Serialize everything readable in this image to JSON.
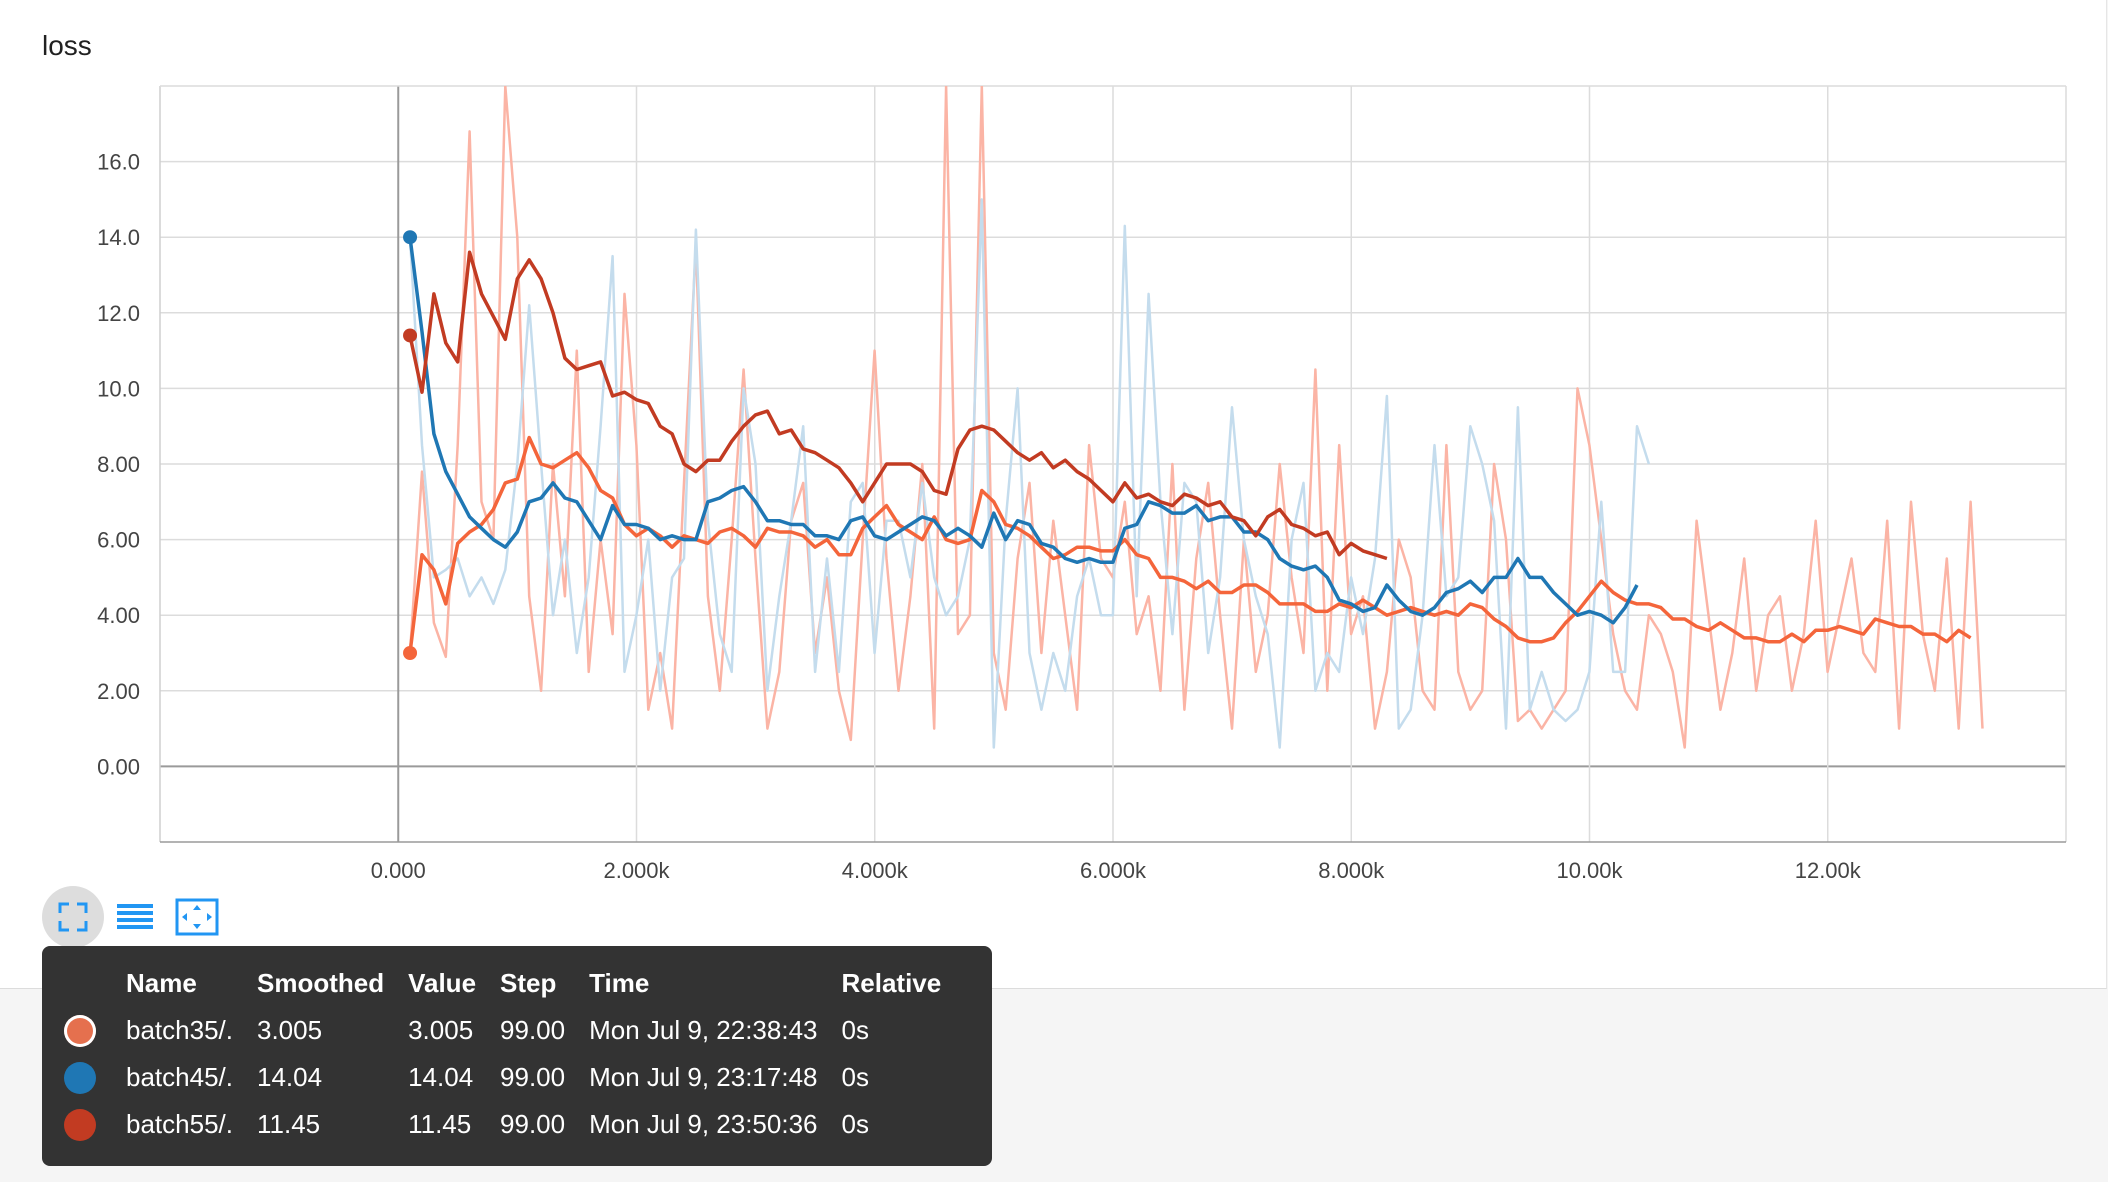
{
  "card": {
    "title": "loss"
  },
  "chart_data": {
    "type": "line",
    "title": "loss",
    "xlabel": "",
    "ylabel": "",
    "xlim": [
      -2000,
      14000
    ],
    "ylim": [
      -2,
      18
    ],
    "xticks": [
      0,
      2000,
      4000,
      6000,
      8000,
      10000,
      12000
    ],
    "xtick_labels": [
      "0.000",
      "2.000k",
      "4.000k",
      "6.000k",
      "8.000k",
      "10.00k",
      "12.00k"
    ],
    "yticks": [
      0,
      2,
      4,
      6,
      8,
      10,
      12,
      14,
      16
    ],
    "ytick_labels": [
      "0.00",
      "2.00",
      "4.00",
      "6.00",
      "8.00",
      "10.0",
      "12.0",
      "14.0",
      "16.0"
    ],
    "grid": true,
    "series": [
      {
        "name": "batch35/.",
        "color": "#f4653b",
        "raw_color": "#fbb4a5",
        "x_start": 99,
        "x_step": 100,
        "smoothed": [
          3.0,
          5.6,
          5.2,
          4.3,
          5.9,
          6.2,
          6.4,
          6.8,
          7.5,
          7.6,
          8.7,
          8.0,
          7.9,
          8.1,
          8.3,
          7.9,
          7.3,
          7.1,
          6.4,
          6.1,
          6.3,
          6.1,
          5.8,
          6.1,
          6.0,
          5.9,
          6.2,
          6.3,
          6.1,
          5.8,
          6.3,
          6.2,
          6.2,
          6.1,
          5.8,
          6.0,
          5.6,
          5.6,
          6.3,
          6.6,
          6.9,
          6.4,
          6.2,
          6.0,
          6.6,
          6.0,
          5.9,
          6.0,
          7.3,
          7.0,
          6.4,
          6.3,
          6.1,
          5.8,
          5.5,
          5.6,
          5.8,
          5.8,
          5.7,
          5.7,
          6.0,
          5.6,
          5.5,
          5.0,
          5.0,
          4.9,
          4.7,
          4.9,
          4.6,
          4.6,
          4.8,
          4.8,
          4.6,
          4.3,
          4.3,
          4.3,
          4.1,
          4.1,
          4.3,
          4.2,
          4.4,
          4.2,
          4.0,
          4.1,
          4.2,
          4.1,
          4.0,
          4.1,
          4.0,
          4.3,
          4.2,
          3.9,
          3.7,
          3.4,
          3.3,
          3.3,
          3.4,
          3.8,
          4.1,
          4.5,
          4.9,
          4.6,
          4.4,
          4.3,
          4.3,
          4.2,
          3.9,
          3.9,
          3.7,
          3.6,
          3.8,
          3.6,
          3.4,
          3.4,
          3.3,
          3.3,
          3.5,
          3.3,
          3.6,
          3.6,
          3.7,
          3.6,
          3.5,
          3.9,
          3.8,
          3.7,
          3.7,
          3.5,
          3.5,
          3.3,
          3.6,
          3.4
        ],
        "raw": [
          3.0,
          7.8,
          3.8,
          2.9,
          8.5,
          16.8,
          7.0,
          6.0,
          18.0,
          14.0,
          4.5,
          2.0,
          8.0,
          4.5,
          11.0,
          2.5,
          6.0,
          3.5,
          12.5,
          8.5,
          1.5,
          3.0,
          1.0,
          7.5,
          13.8,
          4.5,
          2.0,
          6.0,
          10.5,
          5.5,
          1.0,
          2.5,
          6.5,
          7.5,
          3.0,
          5.0,
          2.0,
          0.7,
          6.0,
          11.0,
          5.5,
          2.0,
          4.5,
          8.0,
          1.0,
          18.0,
          3.5,
          4.0,
          18.0,
          3.0,
          1.5,
          5.5,
          7.5,
          3.0,
          6.5,
          4.0,
          1.5,
          8.5,
          5.5,
          5.0,
          7.0,
          3.5,
          4.5,
          2.0,
          8.0,
          1.5,
          5.5,
          7.5,
          4.0,
          1.0,
          6.0,
          2.5,
          4.0,
          8.0,
          5.0,
          3.0,
          10.5,
          2.0,
          8.5,
          3.5,
          4.5,
          1.0,
          2.5,
          6.0,
          5.0,
          2.0,
          1.5,
          8.5,
          2.5,
          1.5,
          2.0,
          8.0,
          6.0,
          1.2,
          1.5,
          1.0,
          1.5,
          2.0,
          10.0,
          8.5,
          6.0,
          3.5,
          2.0,
          1.5,
          4.0,
          3.5,
          2.5,
          0.5,
          6.5,
          4.0,
          1.5,
          3.0,
          5.5,
          2.0,
          4.0,
          4.5,
          2.0,
          3.5,
          6.5,
          2.5,
          4.0,
          5.5,
          3.0,
          2.5,
          6.5,
          1.0,
          7.0,
          3.5,
          2.0,
          5.5,
          1.0,
          7.0,
          1.0
        ]
      },
      {
        "name": "batch45/.",
        "color": "#1f77b4",
        "raw_color": "#c4dced",
        "x_start": 99,
        "x_step": 100,
        "smoothed": [
          14.0,
          11.5,
          8.8,
          7.8,
          7.2,
          6.6,
          6.3,
          6.0,
          5.8,
          6.2,
          7.0,
          7.1,
          7.5,
          7.1,
          7.0,
          6.5,
          6.0,
          6.9,
          6.4,
          6.4,
          6.3,
          6.0,
          6.1,
          6.0,
          6.0,
          7.0,
          7.1,
          7.3,
          7.4,
          7.0,
          6.5,
          6.5,
          6.4,
          6.4,
          6.1,
          6.1,
          6.0,
          6.5,
          6.6,
          6.1,
          6.0,
          6.2,
          6.4,
          6.6,
          6.5,
          6.1,
          6.3,
          6.1,
          5.8,
          6.7,
          6.0,
          6.5,
          6.4,
          5.9,
          5.8,
          5.5,
          5.4,
          5.5,
          5.4,
          5.4,
          6.3,
          6.4,
          7.0,
          6.9,
          6.7,
          6.7,
          6.9,
          6.5,
          6.6,
          6.6,
          6.2,
          6.2,
          6.0,
          5.5,
          5.3,
          5.2,
          5.3,
          5.0,
          4.4,
          4.3,
          4.1,
          4.2,
          4.8,
          4.4,
          4.1,
          4.0,
          4.2,
          4.6,
          4.7,
          4.9,
          4.6,
          5.0,
          5.0,
          5.5,
          5.0,
          5.0,
          4.6,
          4.3,
          4.0,
          4.1,
          4.0,
          3.8,
          4.2,
          4.8
        ],
        "raw": [
          14.0,
          8.5,
          5.0,
          5.2,
          5.5,
          4.5,
          5.0,
          4.3,
          5.2,
          8.0,
          12.2,
          8.0,
          4.0,
          6.0,
          3.0,
          5.0,
          9.0,
          13.5,
          2.5,
          4.0,
          6.0,
          2.0,
          5.0,
          5.5,
          14.2,
          6.5,
          3.5,
          2.5,
          10.0,
          8.0,
          2.0,
          4.5,
          6.5,
          9.0,
          2.5,
          5.5,
          2.5,
          7.0,
          7.5,
          3.0,
          6.5,
          6.5,
          5.0,
          7.5,
          5.0,
          4.0,
          4.5,
          6.0,
          15.0,
          0.5,
          6.5,
          10.0,
          3.0,
          1.5,
          3.0,
          2.0,
          4.5,
          5.5,
          4.0,
          4.0,
          14.3,
          4.5,
          12.5,
          7.0,
          3.5,
          7.5,
          7.0,
          3.0,
          5.0,
          9.5,
          6.0,
          4.5,
          3.5,
          0.5,
          6.0,
          7.5,
          2.0,
          3.0,
          2.5,
          5.0,
          3.5,
          5.5,
          9.8,
          1.0,
          1.5,
          4.0,
          8.5,
          4.5,
          5.0,
          9.0,
          8.0,
          6.5,
          1.0,
          9.5,
          1.5,
          2.5,
          1.5,
          1.2,
          1.5,
          2.5,
          7.0,
          2.5,
          2.5,
          9.0,
          8.0
        ]
      },
      {
        "name": "batch55/.",
        "color": "#c23b22",
        "raw_color": "#f6d0c7",
        "x_start": 99,
        "x_step": 100,
        "smoothed": [
          11.4,
          9.9,
          12.5,
          11.2,
          10.7,
          13.6,
          12.5,
          11.9,
          11.3,
          12.9,
          13.4,
          12.9,
          12.0,
          10.8,
          10.5,
          10.6,
          10.7,
          9.8,
          9.9,
          9.7,
          9.6,
          9.0,
          8.8,
          8.0,
          7.8,
          8.1,
          8.1,
          8.6,
          9.0,
          9.3,
          9.4,
          8.8,
          8.9,
          8.4,
          8.3,
          8.1,
          7.9,
          7.5,
          7.0,
          7.5,
          8.0,
          8.0,
          8.0,
          7.8,
          7.3,
          7.2,
          8.4,
          8.9,
          9.0,
          8.9,
          8.6,
          8.3,
          8.1,
          8.3,
          7.9,
          8.1,
          7.8,
          7.6,
          7.3,
          7.0,
          7.5,
          7.1,
          7.2,
          7.0,
          6.9,
          7.2,
          7.1,
          6.9,
          7.0,
          6.6,
          6.5,
          6.1,
          6.6,
          6.8,
          6.4,
          6.3,
          6.1,
          6.2,
          5.6,
          5.9,
          5.7,
          5.6,
          5.5
        ]
      }
    ]
  },
  "toolbar": {
    "buttons": [
      {
        "name": "fullscreen-button",
        "icon": "fullscreen-icon",
        "active": true
      },
      {
        "name": "toggle-log-scale-button",
        "icon": "list-lines-icon",
        "active": false
      },
      {
        "name": "fit-domain-button",
        "icon": "fit-domain-icon",
        "active": false
      }
    ]
  },
  "tooltip": {
    "headers": {
      "name": "Name",
      "smoothed": "Smoothed",
      "value": "Value",
      "step": "Step",
      "time": "Time",
      "relative": "Relative"
    },
    "rows": [
      {
        "color": "#e5704e",
        "name": "batch35/.",
        "smoothed": "3.005",
        "value": "3.005",
        "step": "99.00",
        "time": "Mon Jul 9, 22:38:43",
        "relative": "0s"
      },
      {
        "color": "#1f77b4",
        "name": "batch45/.",
        "smoothed": "14.04",
        "value": "14.04",
        "step": "99.00",
        "time": "Mon Jul 9, 23:17:48",
        "relative": "0s"
      },
      {
        "color": "#c23b22",
        "name": "batch55/.",
        "smoothed": "11.45",
        "value": "11.45",
        "step": "99.00",
        "time": "Mon Jul 9, 23:50:36",
        "relative": "0s"
      }
    ]
  }
}
